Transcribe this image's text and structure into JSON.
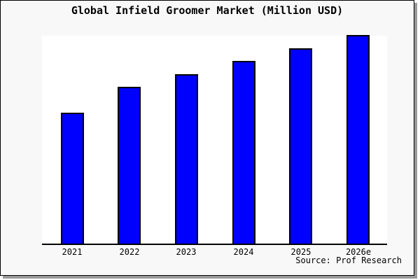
{
  "title": "Global Infield Groomer Market (Million USD)",
  "source_note": "Source: Prof Research",
  "colors": {
    "bar_fill": "#0000ff",
    "bar_border": "#000000",
    "panel_background": "#f8f8f8",
    "plot_background": "#ffffff",
    "axis": "#000000",
    "text": "#000000",
    "panel_shadow": "#9a9a9a"
  },
  "chart_data": {
    "type": "bar",
    "title": "Global Infield Groomer Market (Million USD)",
    "categories": [
      "2021",
      "2022",
      "2023",
      "2024",
      "2025",
      "2026e"
    ],
    "values": [
      187,
      224,
      242,
      261,
      279,
      298
    ],
    "value_scale_note": "no y-axis or data labels shown in image; values are relative bar heights read in pixels",
    "xlabel": "",
    "ylabel": "",
    "ylim": [
      0,
      299
    ],
    "grid": false,
    "legend": false,
    "source_note": "Source: Prof Research"
  }
}
